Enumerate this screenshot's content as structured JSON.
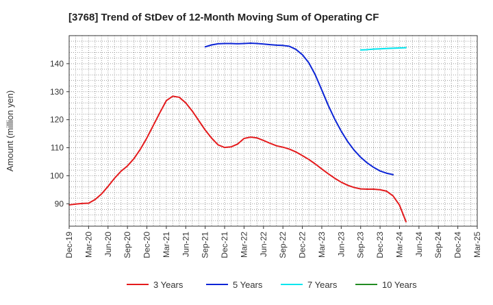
{
  "chart_data": {
    "type": "line",
    "title": "[3768]  Trend of StDev of 12-Month Moving Sum of Operating CF",
    "xlabel": "",
    "ylabel": "Amount (million yen)",
    "ylim": [
      82,
      150
    ],
    "yticks": [
      90,
      100,
      110,
      120,
      130,
      140
    ],
    "xticks": [
      "Dec-19",
      "Mar-20",
      "Jun-20",
      "Sep-20",
      "Dec-20",
      "Mar-21",
      "Jun-21",
      "Sep-21",
      "Dec-21",
      "Mar-22",
      "Jun-22",
      "Sep-22",
      "Dec-22",
      "Mar-23",
      "Jun-23",
      "Sep-23",
      "Dec-23",
      "Mar-24",
      "Jun-24",
      "Sep-24",
      "Dec-24",
      "Mar-25"
    ],
    "grid": true,
    "legend_position": "bottom",
    "series": [
      {
        "name": "3 Years",
        "color": "#e41a1c",
        "start_index": 0,
        "values": [
          89.6,
          89.9,
          90.1,
          90.2,
          91.5,
          93.5,
          96.2,
          99.1,
          101.6,
          103.5,
          106.1,
          109.5,
          113.5,
          118.0,
          122.5,
          126.8,
          128.4,
          128.0,
          126.0,
          123.1,
          119.7,
          116.3,
          113.4,
          111.0,
          110.1,
          110.3,
          111.3,
          113.3,
          113.8,
          113.5,
          112.6,
          111.6,
          110.7,
          110.2,
          109.5,
          108.5,
          107.2,
          105.8,
          104.2,
          102.4,
          100.7,
          99.1,
          97.7,
          96.6,
          95.8,
          95.3,
          95.2,
          95.2,
          95.0,
          94.5,
          92.8,
          89.5,
          83.6
        ]
      },
      {
        "name": "5 Years",
        "color": "#0b24d6",
        "start_index": 21,
        "values": [
          146.0,
          146.7,
          147.1,
          147.2,
          147.2,
          147.1,
          147.2,
          147.3,
          147.2,
          147.0,
          146.8,
          146.6,
          146.5,
          146.2,
          145.1,
          143.2,
          140.3,
          136.0,
          130.6,
          125.1,
          120.2,
          115.9,
          112.2,
          109.1,
          106.6,
          104.6,
          103.0,
          101.7,
          100.9,
          100.4
        ]
      },
      {
        "name": "7 Years",
        "color": "#00e5ee",
        "start_index": 45,
        "values": [
          144.9,
          145.0,
          145.2,
          145.3,
          145.4,
          145.5,
          145.6,
          145.7
        ]
      },
      {
        "name": "10 Years",
        "color": "#228b22",
        "start_index": 0,
        "values": []
      }
    ]
  }
}
